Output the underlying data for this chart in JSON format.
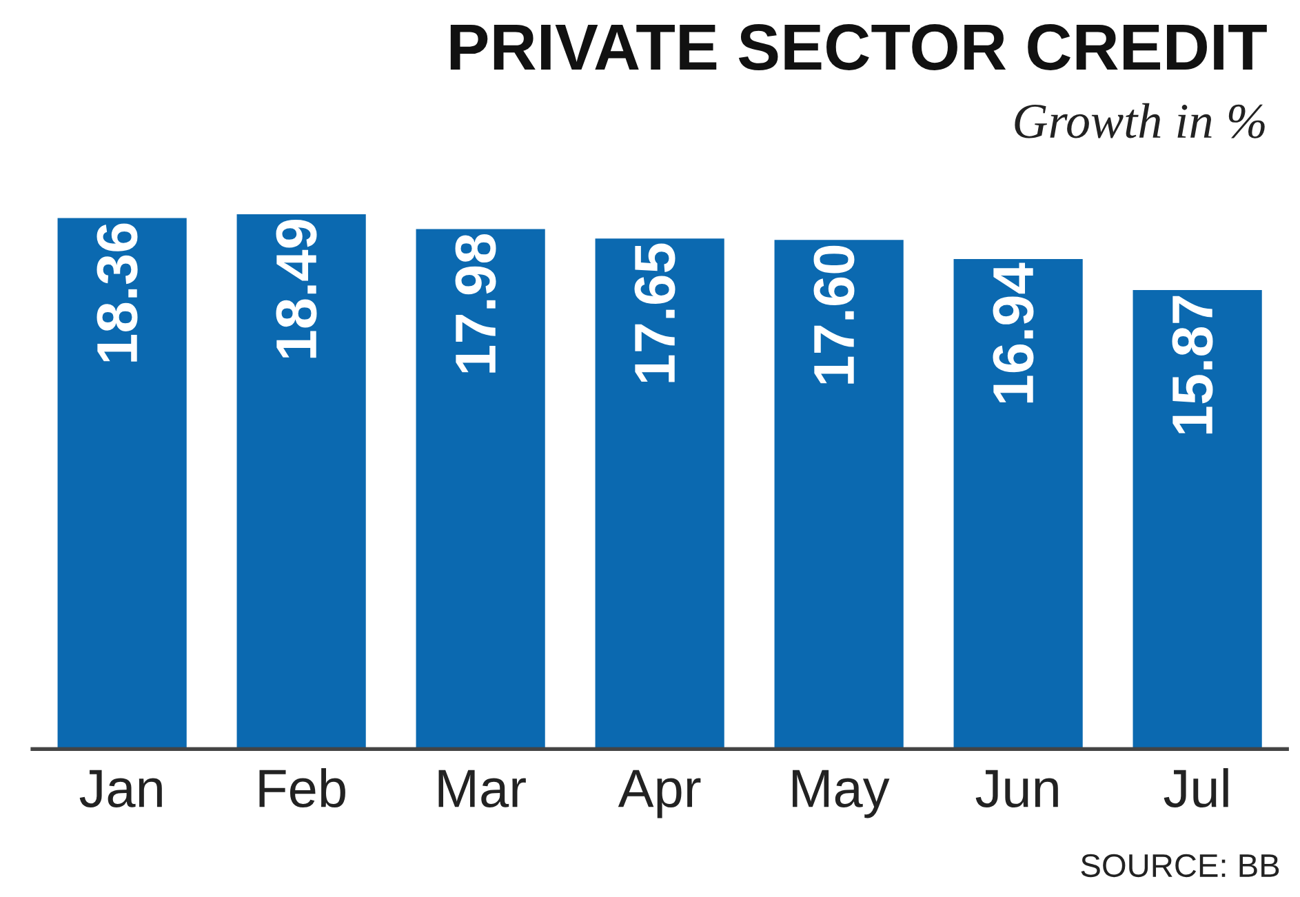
{
  "chart_data": {
    "type": "bar",
    "title": "PRIVATE SECTOR CREDIT",
    "subtitle": "Growth in %",
    "categories": [
      "Jan",
      "Feb",
      "Mar",
      "Apr",
      "May",
      "Jun",
      "Jul"
    ],
    "values": [
      18.36,
      18.49,
      17.98,
      17.65,
      17.6,
      16.94,
      15.87
    ],
    "value_labels": [
      "18.36",
      "18.49",
      "17.98",
      "17.65",
      "17.60",
      "16.94",
      "15.87"
    ],
    "color": "#0b69b0",
    "tick_labels": "x",
    "grid": false,
    "legend": false,
    "annotations": [
      "SOURCE: BB"
    ]
  }
}
